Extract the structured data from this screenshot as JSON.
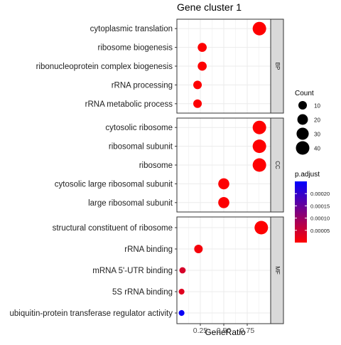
{
  "chart_data": {
    "type": "scatter",
    "title": "Gene cluster 1",
    "xlabel": "GeneRatio",
    "ylabel": "",
    "xlim": [
      0.0,
      1.0
    ],
    "xticks": [
      0.25,
      0.5,
      0.75
    ],
    "xtick_labels": [
      "0.25",
      "0.50",
      "0.75"
    ],
    "grid": true,
    "panels": [
      {
        "strip": "BP",
        "terms": [
          {
            "label": "cytoplasmic translation",
            "x": 0.88,
            "count": 40,
            "p_adjust": 1e-06
          },
          {
            "label": "ribosome biogenesis",
            "x": 0.27,
            "count": 12,
            "p_adjust": 2e-06
          },
          {
            "label": "ribonucleoprotein complex biogenesis",
            "x": 0.27,
            "count": 12,
            "p_adjust": 2e-06
          },
          {
            "label": "rRNA processing",
            "x": 0.22,
            "count": 10,
            "p_adjust": 2e-06
          },
          {
            "label": "rRNA metabolic process",
            "x": 0.22,
            "count": 10,
            "p_adjust": 2e-06
          }
        ]
      },
      {
        "strip": "CC",
        "terms": [
          {
            "label": "cytosolic ribosome",
            "x": 0.88,
            "count": 40,
            "p_adjust": 1e-06
          },
          {
            "label": "ribosomal subunit",
            "x": 0.88,
            "count": 40,
            "p_adjust": 1e-06
          },
          {
            "label": "ribosome",
            "x": 0.88,
            "count": 40,
            "p_adjust": 1e-06
          },
          {
            "label": "cytosolic large ribosomal subunit",
            "x": 0.5,
            "count": 23,
            "p_adjust": 2e-06
          },
          {
            "label": "large ribosomal subunit",
            "x": 0.5,
            "count": 23,
            "p_adjust": 2e-06
          }
        ]
      },
      {
        "strip": "MF",
        "terms": [
          {
            "label": "structural constituent of ribosome",
            "x": 0.9,
            "count": 40,
            "p_adjust": 1e-06
          },
          {
            "label": "rRNA binding",
            "x": 0.23,
            "count": 10,
            "p_adjust": 1e-05
          },
          {
            "label": "mRNA 5'-UTR binding",
            "x": 0.06,
            "count": 3,
            "p_adjust": 4e-05
          },
          {
            "label": "5S rRNA binding",
            "x": 0.05,
            "count": 2,
            "p_adjust": 3e-05
          },
          {
            "label": "ubiquitin-protein transferase regulator activity",
            "x": 0.05,
            "count": 2,
            "p_adjust": 0.00024
          }
        ]
      }
    ],
    "size_legend": {
      "title": "Count",
      "values": [
        10,
        20,
        30,
        40
      ],
      "labels": [
        "10",
        "20",
        "30",
        "40"
      ]
    },
    "color_legend": {
      "title": "p.adjust",
      "range": [
        0.0,
        0.00025
      ],
      "ticks": [
        5e-05,
        0.0001,
        0.00015,
        0.0002
      ],
      "tick_labels": [
        "0.00005",
        "0.00010",
        "0.00015",
        "0.00020"
      ],
      "low_color": "#ff0000",
      "high_color": "#0000ff"
    },
    "colors": {
      "panel_border": "#333333",
      "strip_fill": "#d9d9d9",
      "grid": "#ebebeb"
    }
  }
}
